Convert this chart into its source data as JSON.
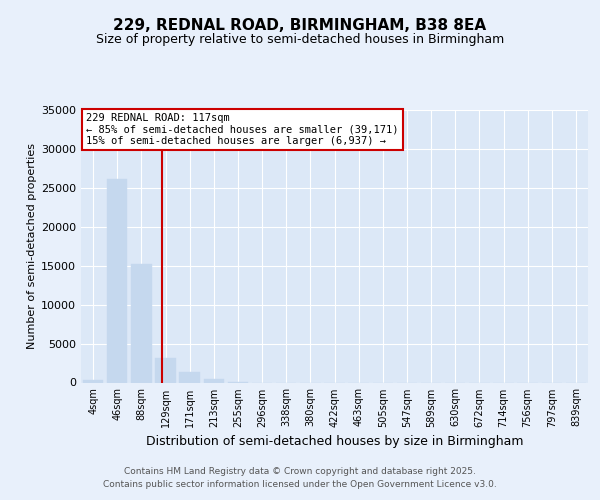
{
  "title1": "229, REDNAL ROAD, BIRMINGHAM, B38 8EA",
  "title2": "Size of property relative to semi-detached houses in Birmingham",
  "xlabel": "Distribution of semi-detached houses by size in Birmingham",
  "ylabel": "Number of semi-detached properties",
  "categories": [
    "4sqm",
    "46sqm",
    "88sqm",
    "129sqm",
    "171sqm",
    "213sqm",
    "255sqm",
    "296sqm",
    "338sqm",
    "380sqm",
    "422sqm",
    "463sqm",
    "505sqm",
    "547sqm",
    "589sqm",
    "630sqm",
    "672sqm",
    "714sqm",
    "756sqm",
    "797sqm",
    "839sqm"
  ],
  "values": [
    300,
    26100,
    15200,
    3200,
    1300,
    450,
    100,
    0,
    0,
    0,
    0,
    0,
    0,
    0,
    0,
    0,
    0,
    0,
    0,
    0,
    0
  ],
  "bar_color": "#c5d8ee",
  "bar_edgecolor": "#c5d8ee",
  "vline_x": 2.85,
  "vline_color": "#cc0000",
  "annotation_title": "229 REDNAL ROAD: 117sqm",
  "annotation_line1": "← 85% of semi-detached houses are smaller (39,171)",
  "annotation_line2": "15% of semi-detached houses are larger (6,937) →",
  "annotation_box_color": "#cc0000",
  "ylim": [
    0,
    35000
  ],
  "yticks": [
    0,
    5000,
    10000,
    15000,
    20000,
    25000,
    30000,
    35000
  ],
  "footer1": "Contains HM Land Registry data © Crown copyright and database right 2025.",
  "footer2": "Contains public sector information licensed under the Open Government Licence v3.0.",
  "bg_color": "#e8f0fb",
  "plot_bg_color": "#dce8f7"
}
